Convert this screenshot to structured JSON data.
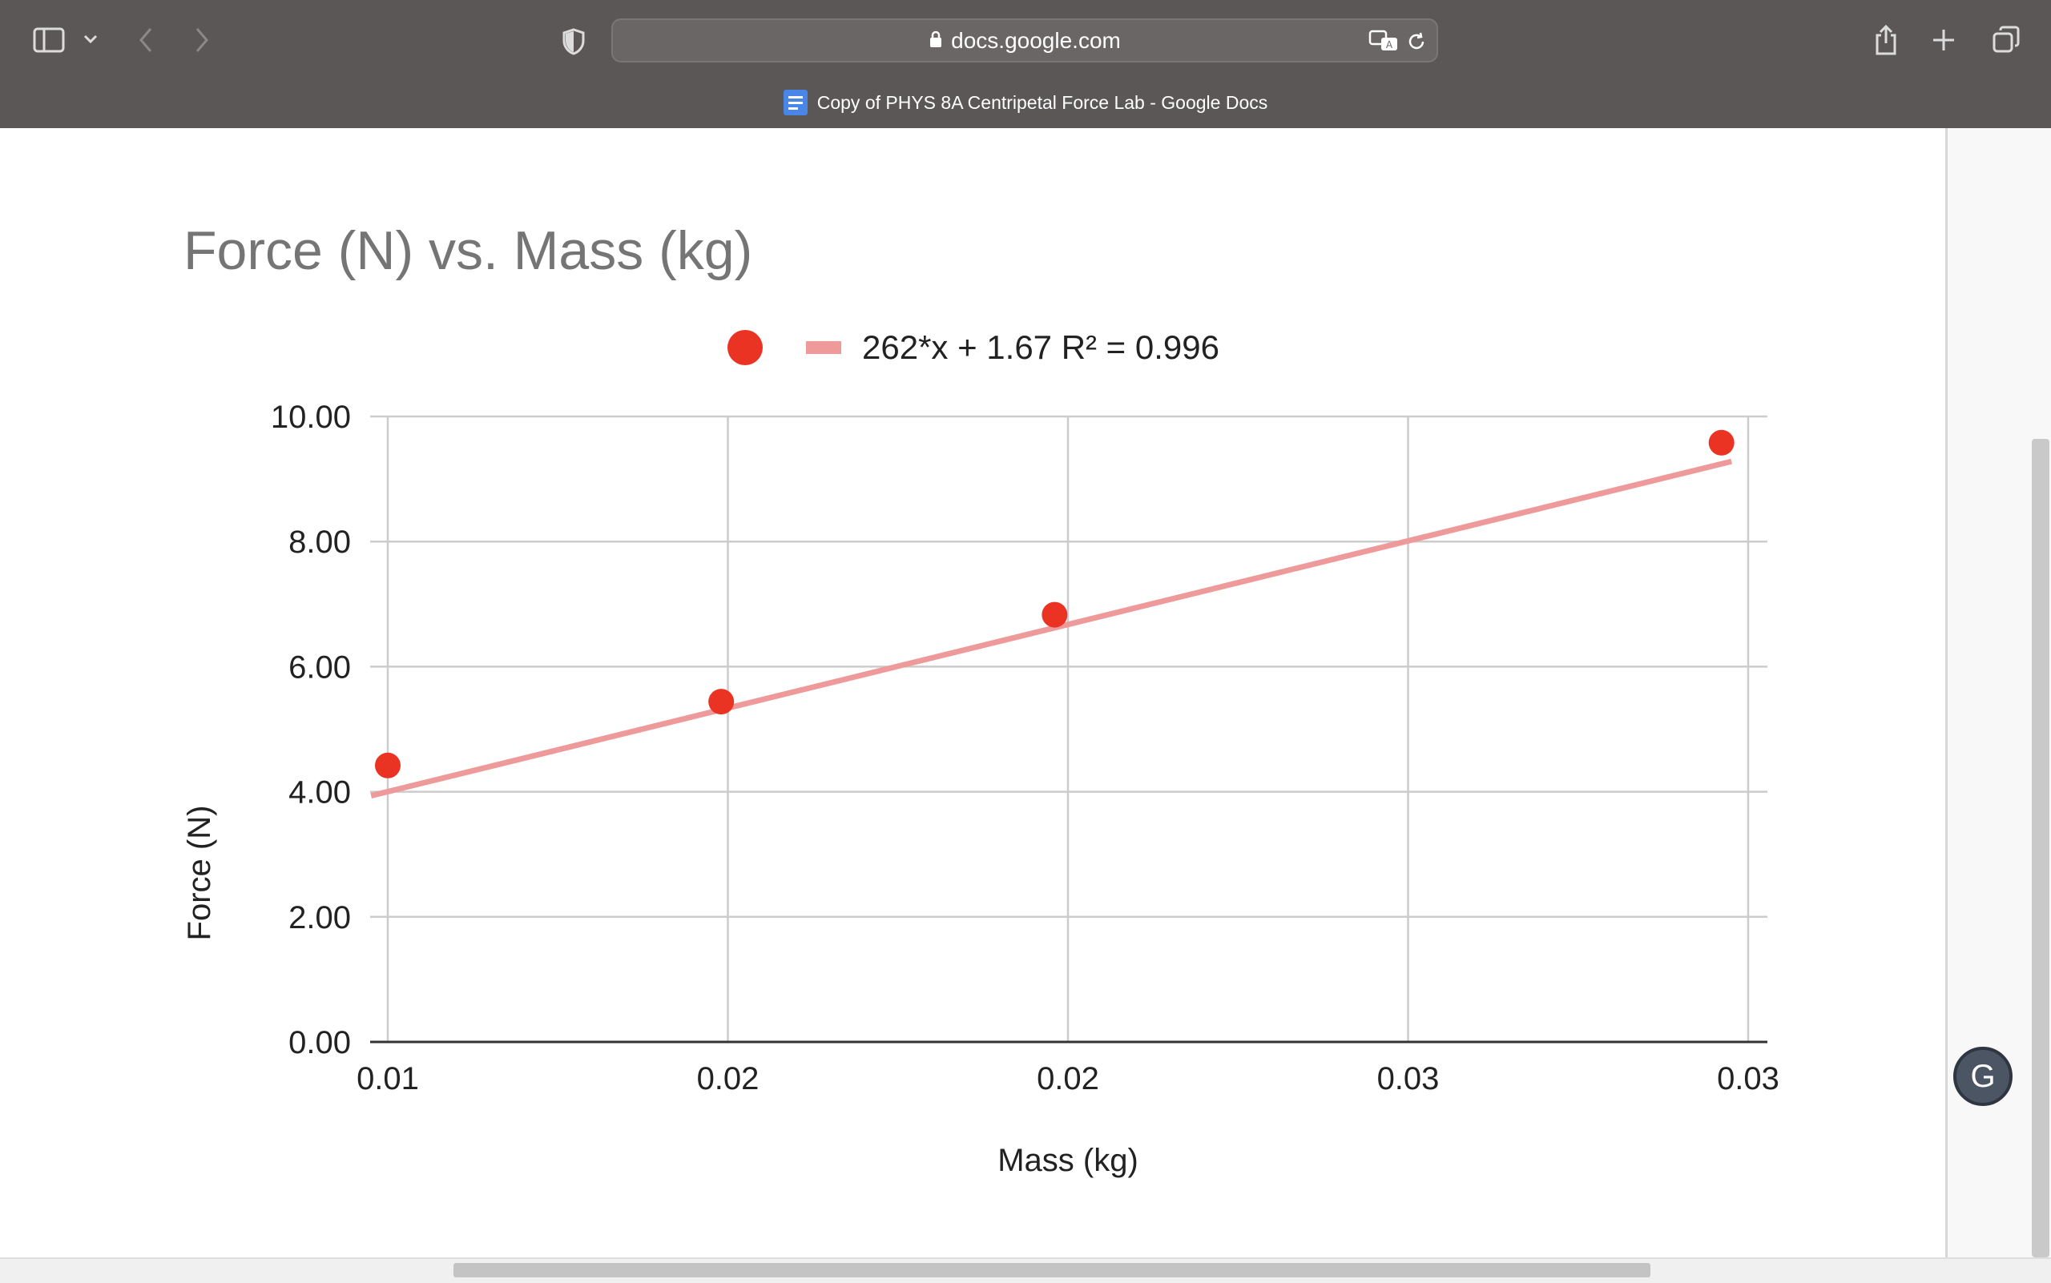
{
  "browser": {
    "url": "docs.google.com",
    "tab_title": "Copy of PHYS 8A Centripetal Force Lab - Google Docs"
  },
  "icons": {
    "sidebar": "sidebar-icon",
    "back": "chevron-left-icon",
    "forward": "chevron-right-icon",
    "shield": "shield-icon",
    "translate": "translate-icon",
    "reload": "reload-icon",
    "share": "share-icon",
    "new_tab": "plus-icon",
    "tabs": "tabs-icon",
    "grammarly": "grammarly-icon"
  },
  "chart_data": {
    "type": "scatter",
    "title": "Force (N) vs. Mass (kg)",
    "xlabel": "Mass (kg)",
    "ylabel": "Force (N)",
    "x_tick_labels": [
      "0.01",
      "0.02",
      "0.02",
      "0.03",
      "0.03"
    ],
    "y_tick_labels": [
      "0.00",
      "2.00",
      "4.00",
      "6.00",
      "8.00",
      "10.00"
    ],
    "xlim": [
      0.0089,
      0.0293
    ],
    "ylim": [
      0,
      10
    ],
    "points": [
      {
        "x": 0.0089,
        "y": 4.42
      },
      {
        "x": 0.0139,
        "y": 5.44
      },
      {
        "x": 0.0189,
        "y": 6.83
      },
      {
        "x": 0.0289,
        "y": 9.58
      }
    ],
    "trendline": {
      "type": "linear",
      "slope": 262,
      "intercept": 1.67,
      "x_range": [
        0.00865,
        0.02905
      ]
    },
    "legend": {
      "label": "262*x + 1.67 R² = 0.996",
      "position": "top"
    },
    "grid": true,
    "colors": {
      "points": "#ea3323",
      "trendline": "#ef9a9a",
      "grid": "#cccccc",
      "title": "#757575"
    }
  }
}
